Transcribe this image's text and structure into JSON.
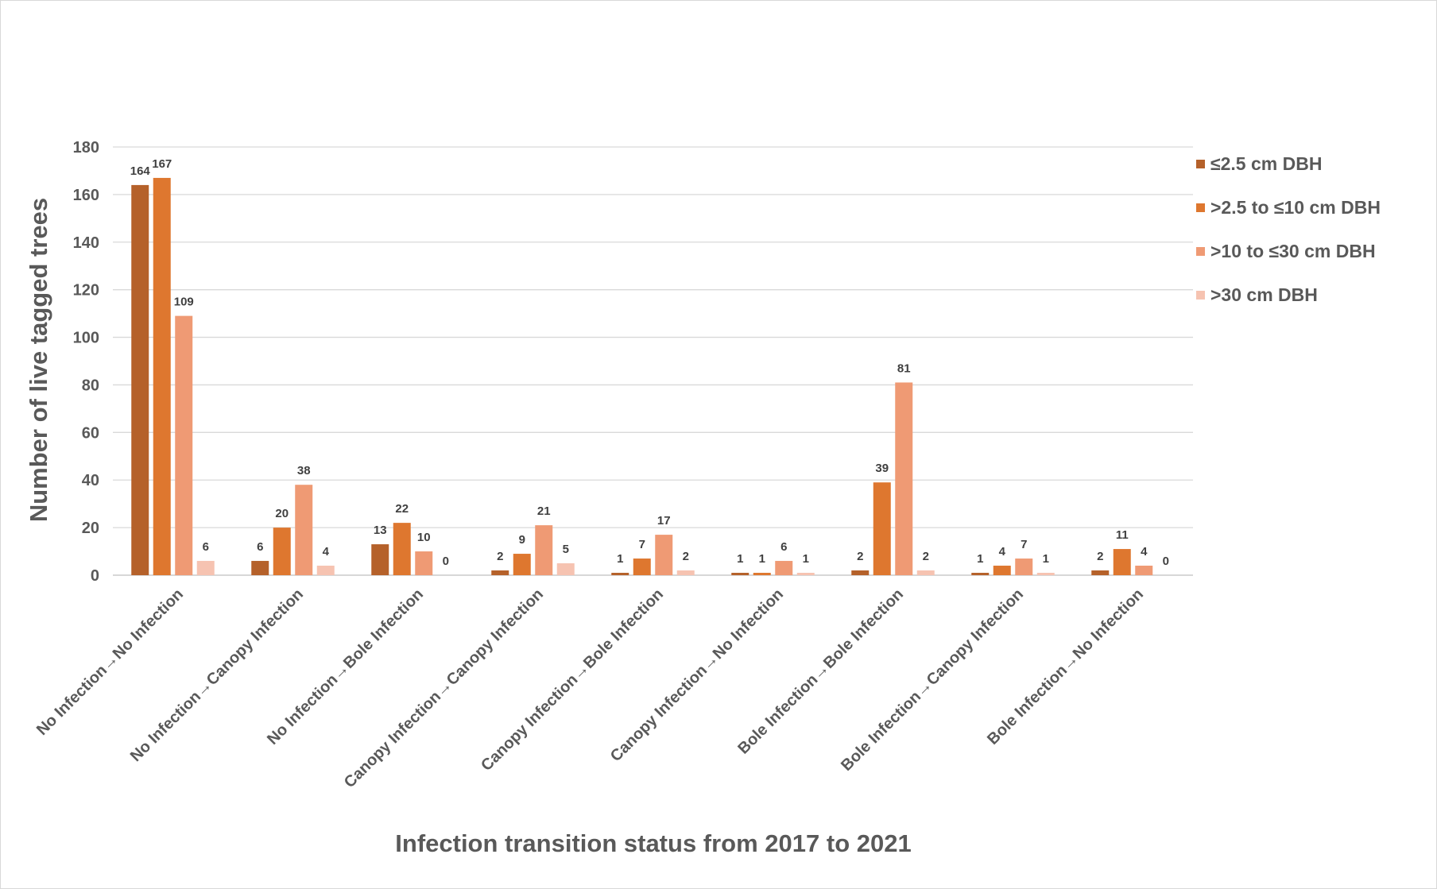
{
  "chart_data": {
    "type": "bar",
    "title": "",
    "xlabel": "Infection transition status from 2017 to 2021",
    "ylabel": "Number of live tagged trees",
    "ylim": [
      0,
      180
    ],
    "yticks": [
      0,
      20,
      40,
      60,
      80,
      100,
      120,
      140,
      160,
      180
    ],
    "grid": true,
    "legend_position": "right",
    "categories": [
      "No Infection→No Infection",
      "No Infection→Canopy Infection",
      "No Infection→Bole Infection",
      "Canopy Infection→Canopy Infection",
      "Canopy Infection→Bole Infection",
      "Canopy Infection→No Infection",
      "Bole Infection→Bole Infection",
      "Bole Infection→Canopy Infection",
      "Bole Infection→No Infection"
    ],
    "series": [
      {
        "name": "≤2.5 cm DBH",
        "color": "#b5612a",
        "values": [
          164,
          6,
          13,
          2,
          1,
          1,
          2,
          1,
          2
        ]
      },
      {
        "name": ">2.5 to ≤10 cm DBH",
        "color": "#de772f",
        "values": [
          167,
          20,
          22,
          9,
          7,
          1,
          39,
          4,
          11
        ]
      },
      {
        "name": ">10 to ≤30 cm DBH",
        "color": "#ef9a74",
        "values": [
          109,
          38,
          10,
          21,
          17,
          6,
          81,
          7,
          4
        ]
      },
      {
        "name": ">30 cm DBH",
        "color": "#f6c3b1",
        "values": [
          6,
          4,
          0,
          5,
          2,
          1,
          2,
          1,
          0
        ]
      }
    ]
  }
}
